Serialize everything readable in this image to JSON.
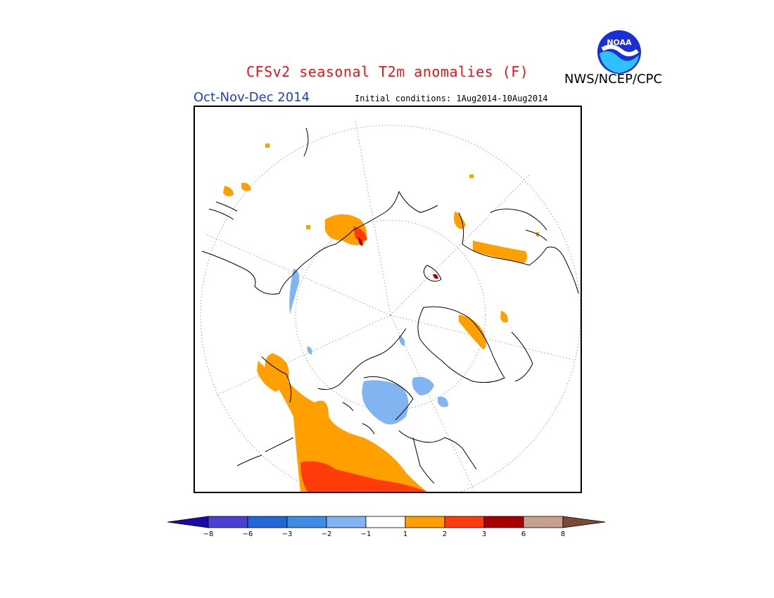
{
  "title": "CFSv2 seasonal T2m anomalies (F)",
  "agency": "NWS/NCEP/CPC",
  "season": "Oct-Nov-Dec 2014",
  "initial_conditions": "Initial conditions: 1Aug2014-10Aug2014",
  "logo": {
    "text": "NOAA",
    "icon": "noaa-logo-icon"
  },
  "colors": {
    "title": "#e8141c",
    "season": "#1a3fd6",
    "c_le_m8": "#1a0ba8",
    "c_m8_m6": "#4a3fd0",
    "c_m6_m3": "#2266d8",
    "c_m3_m2": "#3f8ce6",
    "c_m2_m1": "#82b4f2",
    "c_m1_1": "#ffffff",
    "c_1_2": "#ffa000",
    "c_2_3": "#ff3c0a",
    "c_3_6": "#a80000",
    "c_6_8": "#c8a090",
    "c_ge_8": "#7a4a36"
  },
  "colorbar": {
    "ticks": [
      "−8",
      "−6",
      "−3",
      "−2",
      "−1",
      "1",
      "2",
      "3",
      "6",
      "8"
    ]
  },
  "map": {
    "projection": "north-polar-stereographic",
    "regions": [
      "North America",
      "Europe",
      "Asia",
      "Arctic Ocean",
      "Greenland"
    ]
  }
}
